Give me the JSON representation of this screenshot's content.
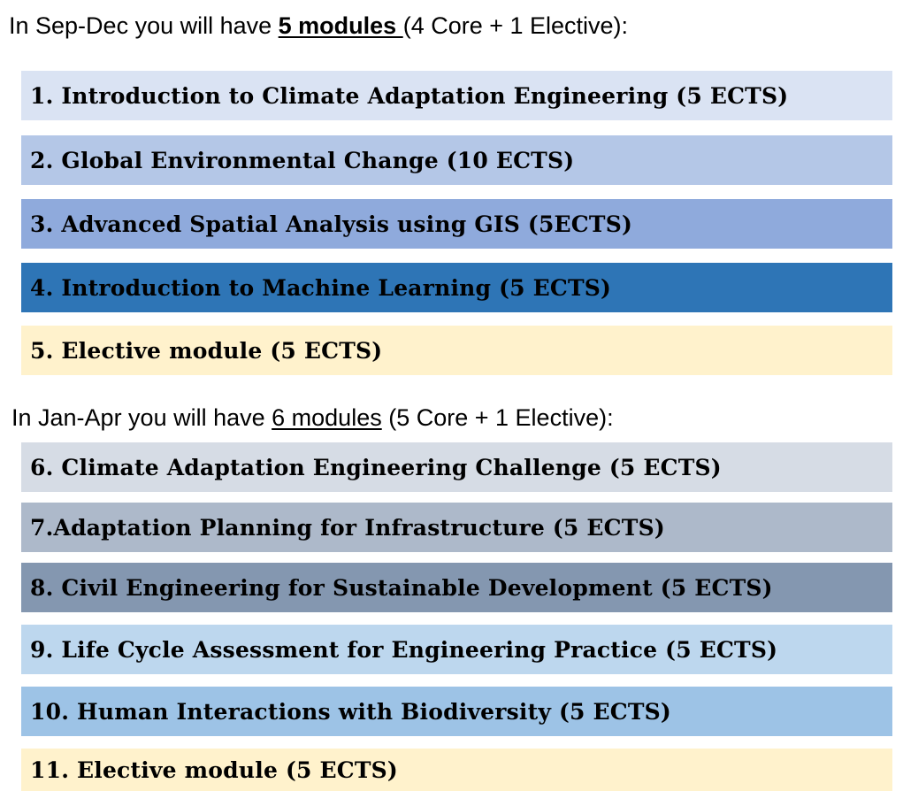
{
  "term1": {
    "intro_prefix": "In Sep-Dec you will have ",
    "intro_count": "5 modules ",
    "intro_suffix": "(4 Core + 1 Elective):"
  },
  "term2": {
    "intro_prefix": "In Jan-Apr you will have ",
    "intro_count": "6 modules",
    "intro_suffix": " (5 Core + 1 Elective):"
  },
  "modules": [
    {
      "label": "1. Introduction to Climate Adaptation Engineering (5 ECTS)",
      "color": "#dae3f3"
    },
    {
      "label": "2. Global Environmental Change (10 ECTS)",
      "color": "#b4c7e7"
    },
    {
      "label": "3. Advanced Spatial Analysis using GIS (5ECTS)",
      "color": "#8faadc"
    },
    {
      "label": "4. Introduction to Machine Learning (5 ECTS)",
      "color": "#2e75b6"
    },
    {
      "label": "5. Elective module (5 ECTS)",
      "color": "#fff2cc"
    },
    {
      "label": "6. Climate Adaptation Engineering Challenge (5 ECTS)",
      "color": "#d6dce5"
    },
    {
      "label": "7.Adaptation Planning for Infrastructure (5 ECTS)",
      "color": "#adb9ca"
    },
    {
      "label": "8. Civil Engineering for Sustainable Development (5 ECTS)",
      "color": "#8497b0"
    },
    {
      "label": "9. Life Cycle Assessment for Engineering Practice (5 ECTS)",
      "color": "#bdd7ee"
    },
    {
      "label": "10. Human Interactions with Biodiversity (5 ECTS)",
      "color": "#9dc3e6"
    },
    {
      "label": "11. Elective module (5 ECTS)",
      "color": "#fff2cc"
    }
  ]
}
